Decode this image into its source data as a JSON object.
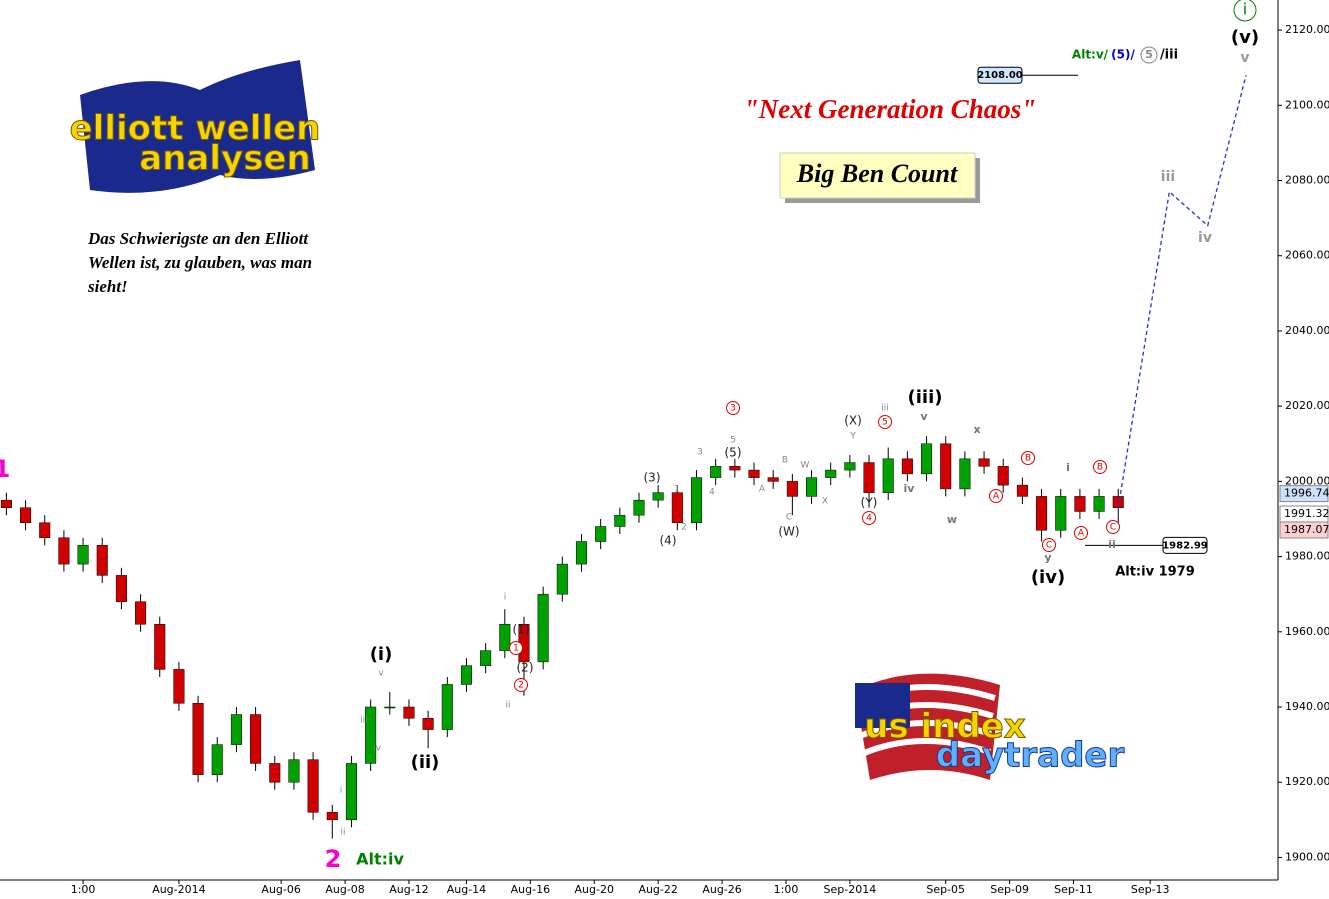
{
  "chart_data": {
    "type": "candlestick",
    "title": "\"Next Generation Chaos\"",
    "subtitle": "Big Ben Count",
    "note_lines": [
      "Das Schwierigste an den Elliott",
      "Wellen ist, zu glauben, was man",
      "sieht!"
    ],
    "logos": [
      "elliott wellen",
      "analysen",
      "us index",
      "daytrader"
    ],
    "x": [
      1,
      4,
      7,
      10,
      13,
      16,
      19,
      22,
      25,
      28,
      31,
      34,
      37,
      40,
      43,
      46,
      49,
      52,
      55,
      58,
      61,
      64,
      67,
      70,
      73,
      76,
      79,
      82,
      85,
      88,
      91,
      94,
      97,
      100,
      103,
      106,
      109,
      112,
      115,
      118,
      121,
      124,
      127,
      130,
      133,
      136,
      139,
      142,
      145,
      148,
      151,
      154,
      157,
      160,
      163,
      166,
      169,
      172,
      175
    ],
    "open": [
      1995,
      1993,
      1989,
      1985,
      1978,
      1983,
      1975,
      1968,
      1962,
      1950,
      1941,
      1922,
      1930,
      1938,
      1925,
      1920,
      1926,
      1912,
      1910,
      1925,
      1940,
      1940,
      1937,
      1934,
      1946,
      1951,
      1955,
      1962,
      1952,
      1970,
      1978,
      1984,
      1988,
      1991,
      1995,
      1997,
      1989,
      2001,
      2004,
      2003,
      2001,
      2000,
      1996,
      2001,
      2003,
      2005,
      1997,
      2006,
      2002,
      2010,
      1998,
      2006,
      2004,
      1999,
      1996,
      1987,
      1996,
      1992,
      1996
    ],
    "high": [
      1997,
      1995,
      1991,
      1987,
      1985,
      1985,
      1977,
      1970,
      1964,
      1952,
      1943,
      1932,
      1940,
      1940,
      1927,
      1928,
      1928,
      1914,
      1927,
      1942,
      1944,
      1942,
      1939,
      1948,
      1953,
      1957,
      1966,
      1964,
      1972,
      1980,
      1986,
      1990,
      1993,
      1997,
      1999,
      1999,
      2003,
      2006,
      2006,
      2005,
      2003,
      2002,
      2003,
      2005,
      2007,
      2007,
      2009,
      2008,
      2012,
      2012,
      2008,
      2008,
      2006,
      2001,
      1998,
      1998,
      1998,
      1998,
      1998
    ],
    "low": [
      1991,
      1987,
      1983,
      1976,
      1976,
      1973,
      1966,
      1960,
      1948,
      1939,
      1920,
      1920,
      1928,
      1923,
      1918,
      1918,
      1910,
      1905,
      1908,
      1923,
      1938,
      1935,
      1929,
      1932,
      1944,
      1949,
      1953,
      1943,
      1950,
      1968,
      1976,
      1982,
      1986,
      1989,
      1993,
      1987,
      1987,
      1999,
      2001,
      1999,
      1998,
      1991,
      1994,
      1999,
      2001,
      1993,
      1995,
      2000,
      2000,
      1996,
      1996,
      2002,
      1997,
      1994,
      1984,
      1985,
      1990,
      1990,
      1988
    ],
    "close": [
      1993,
      1989,
      1985,
      1978,
      1983,
      1975,
      1968,
      1962,
      1950,
      1941,
      1922,
      1930,
      1938,
      1925,
      1920,
      1926,
      1912,
      1910,
      1925,
      1940,
      1940,
      1937,
      1934,
      1946,
      1951,
      1955,
      1962,
      1952,
      1970,
      1978,
      1984,
      1988,
      1991,
      1995,
      1997,
      1989,
      2001,
      2004,
      2003,
      2001,
      2000,
      1996,
      2001,
      2003,
      2005,
      1997,
      2006,
      2002,
      2010,
      1998,
      2006,
      2004,
      1999,
      1996,
      1987,
      1996,
      1992,
      1996,
      1993
    ],
    "up_color": "#00a000",
    "down_color": "#d00000",
    "projection": {
      "x": [
        175,
        183,
        189,
        195
      ],
      "values": [
        1993,
        2077,
        2068,
        2108
      ],
      "color": "#2233cc"
    },
    "xlim": [
      0,
      200
    ],
    "ylim": [
      1894,
      2128
    ],
    "yticks": [
      {
        "value": 1900,
        "label": "1900.00"
      },
      {
        "value": 1920,
        "label": "1920.00"
      },
      {
        "value": 1940,
        "label": "1940.00"
      },
      {
        "value": 1960,
        "label": "1960.00"
      },
      {
        "value": 1980,
        "label": "1980.00"
      },
      {
        "value": 2000,
        "label": "2000.00"
      },
      {
        "value": 2020,
        "label": "2020.00"
      },
      {
        "value": 2040,
        "label": "2040.00"
      },
      {
        "value": 2060,
        "label": "2060.00"
      },
      {
        "value": 2080,
        "label": "2080.00"
      },
      {
        "value": 2100,
        "label": "2100.00"
      },
      {
        "value": 2120,
        "label": "2120.00"
      }
    ],
    "xticks": [
      {
        "value": 13,
        "label": "1:00"
      },
      {
        "value": 28,
        "label": "Aug-2014"
      },
      {
        "value": 44,
        "label": "Aug-06"
      },
      {
        "value": 54,
        "label": "Aug-08"
      },
      {
        "value": 64,
        "label": "Aug-12"
      },
      {
        "value": 73,
        "label": "Aug-14"
      },
      {
        "value": 83,
        "label": "Aug-16"
      },
      {
        "value": 93,
        "label": "Aug-20"
      },
      {
        "value": 103,
        "label": "Aug-22"
      },
      {
        "value": 113,
        "label": "Aug-26"
      },
      {
        "value": 123,
        "label": "1:00"
      },
      {
        "value": 133,
        "label": "Sep-2014"
      },
      {
        "value": 148,
        "label": "Sep-05"
      },
      {
        "value": 158,
        "label": "Sep-09"
      },
      {
        "value": 168,
        "label": "Sep-11"
      },
      {
        "value": 180,
        "label": "Sep-13"
      }
    ],
    "price_levels": [
      {
        "value": 1996.74,
        "color": "#cfe0ff"
      },
      {
        "value": 1991.32,
        "color": "#ffffff"
      },
      {
        "value": 1987.07,
        "color": "#ffd0d0"
      }
    ],
    "target_levels": [
      {
        "value": 1982.99
      },
      {
        "value": 2108,
        "label": "2108.00"
      }
    ],
    "annotations": [
      "i",
      "(v)",
      "v",
      "Alt:v/",
      "(5)/",
      "5",
      "/iii",
      "(iii)",
      "(iv)",
      "(i)",
      "(ii)",
      "2",
      "Alt:iv",
      "Alt:iv 1979",
      "1",
      "(3)",
      "(4)",
      "(5)",
      "(W)",
      "(X)",
      "(Y)",
      "(1)",
      "(2)",
      "w",
      "x",
      "y",
      "i",
      "ii",
      "iii",
      "iv",
      "v",
      "iv",
      "iii",
      "3",
      "5",
      "4",
      "A",
      "B",
      "C",
      "A",
      "B",
      "C",
      "1",
      "2",
      "3",
      "5",
      "4",
      "1",
      "2",
      "A",
      "B",
      "C",
      "W",
      "X",
      "Y",
      "i",
      "ii",
      "v",
      "iii",
      "iv",
      "i",
      "ii"
    ]
  }
}
